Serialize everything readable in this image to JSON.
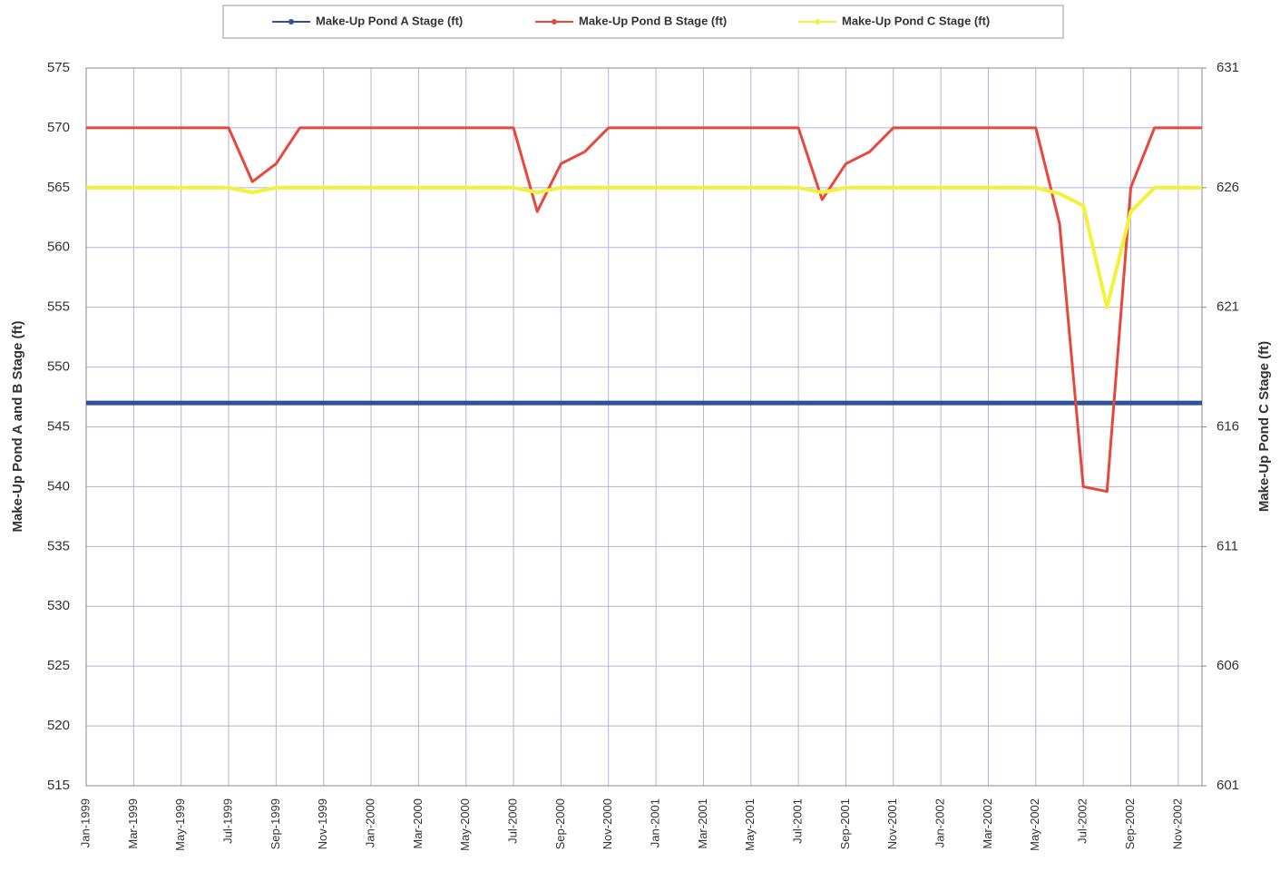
{
  "chart_data": {
    "type": "line",
    "x": [
      "1999-01",
      "1999-02",
      "1999-03",
      "1999-04",
      "1999-05",
      "1999-06",
      "1999-07",
      "1999-08",
      "1999-09",
      "1999-10",
      "1999-11",
      "1999-12",
      "2000-01",
      "2000-02",
      "2000-03",
      "2000-04",
      "2000-05",
      "2000-06",
      "2000-07",
      "2000-08",
      "2000-09",
      "2000-10",
      "2000-11",
      "2000-12",
      "2001-01",
      "2001-02",
      "2001-03",
      "2001-04",
      "2001-05",
      "2001-06",
      "2001-07",
      "2001-08",
      "2001-09",
      "2001-10",
      "2001-11",
      "2001-12",
      "2002-01",
      "2002-02",
      "2002-03",
      "2002-04",
      "2002-05",
      "2002-06",
      "2002-07",
      "2002-08",
      "2002-09",
      "2002-10",
      "2002-11",
      "2002-12"
    ],
    "series": [
      {
        "name": "Make-Up Pond A Stage (ft)",
        "color": "#2f4f9f",
        "values": [
          547,
          547,
          547,
          547,
          547,
          547,
          547,
          547,
          547,
          547,
          547,
          547,
          547,
          547,
          547,
          547,
          547,
          547,
          547,
          547,
          547,
          547,
          547,
          547,
          547,
          547,
          547,
          547,
          547,
          547,
          547,
          547,
          547,
          547,
          547,
          547,
          547,
          547,
          547,
          547,
          547,
          547,
          547,
          547,
          547,
          547,
          547,
          547
        ]
      },
      {
        "name": "Make-Up Pond B Stage (ft)",
        "color": "#e8473c",
        "values": [
          570,
          570,
          570,
          570,
          570,
          570,
          570,
          565.5,
          567,
          570,
          570,
          570,
          570,
          570,
          570,
          570,
          570,
          570,
          570,
          563,
          567,
          568,
          570,
          570,
          570,
          570,
          570,
          570,
          570,
          570,
          570,
          564,
          567,
          568,
          570,
          570,
          570,
          570,
          570,
          570,
          570,
          562,
          540,
          539.6,
          565,
          570,
          570,
          570
        ]
      },
      {
        "name": "Make-Up Pond C Stage (ft)",
        "color": "#f2f23a",
        "axis": "y2",
        "values": [
          626,
          626,
          626,
          626,
          626,
          626,
          626,
          625.8,
          626,
          626,
          626,
          626,
          626,
          626,
          626,
          626,
          626,
          626,
          626,
          625.8,
          626,
          626,
          626,
          626,
          626,
          626,
          626,
          626,
          626,
          626,
          626,
          625.8,
          626,
          626,
          626,
          626,
          626,
          626,
          626,
          626,
          626,
          625.75,
          625.25,
          621,
          625,
          626,
          626,
          626
        ]
      }
    ],
    "xlim": [
      "1999-01",
      "2002-12"
    ],
    "xticks": [
      {
        "value": "1999-01",
        "label": "Jan-1999"
      },
      {
        "value": "1999-03",
        "label": "Mar-1999"
      },
      {
        "value": "1999-05",
        "label": "May-1999"
      },
      {
        "value": "1999-07",
        "label": "Jul-1999"
      },
      {
        "value": "1999-09",
        "label": "Sep-1999"
      },
      {
        "value": "1999-11",
        "label": "Nov-1999"
      },
      {
        "value": "2000-01",
        "label": "Jan-2000"
      },
      {
        "value": "2000-03",
        "label": "Mar-2000"
      },
      {
        "value": "2000-05",
        "label": "May-2000"
      },
      {
        "value": "2000-07",
        "label": "Jul-2000"
      },
      {
        "value": "2000-09",
        "label": "Sep-2000"
      },
      {
        "value": "2000-11",
        "label": "Nov-2000"
      },
      {
        "value": "2001-01",
        "label": "Jan-2001"
      },
      {
        "value": "2001-03",
        "label": "Mar-2001"
      },
      {
        "value": "2001-05",
        "label": "May-2001"
      },
      {
        "value": "2001-07",
        "label": "Jul-2001"
      },
      {
        "value": "2001-09",
        "label": "Sep-2001"
      },
      {
        "value": "2001-11",
        "label": "Nov-2001"
      },
      {
        "value": "2002-01",
        "label": "Jan-2002"
      },
      {
        "value": "2002-03",
        "label": "Mar-2002"
      },
      {
        "value": "2002-05",
        "label": "May-2002"
      },
      {
        "value": "2002-07",
        "label": "Jul-2002"
      },
      {
        "value": "2002-09",
        "label": "Sep-2002"
      },
      {
        "value": "2002-11",
        "label": "Nov-2002"
      }
    ],
    "ylim": [
      515,
      575
    ],
    "yticks": [
      515,
      520,
      525,
      530,
      535,
      540,
      545,
      550,
      555,
      560,
      565,
      570,
      575
    ],
    "y2lim": [
      601,
      631
    ],
    "y2ticks": [
      601,
      606,
      611,
      616,
      621,
      626,
      631
    ],
    "ylabel": "Make-Up Pond A and B Stage (ft)",
    "y2label": "Make-Up Pond C Stage (ft)",
    "grid": true,
    "legend": "top"
  }
}
